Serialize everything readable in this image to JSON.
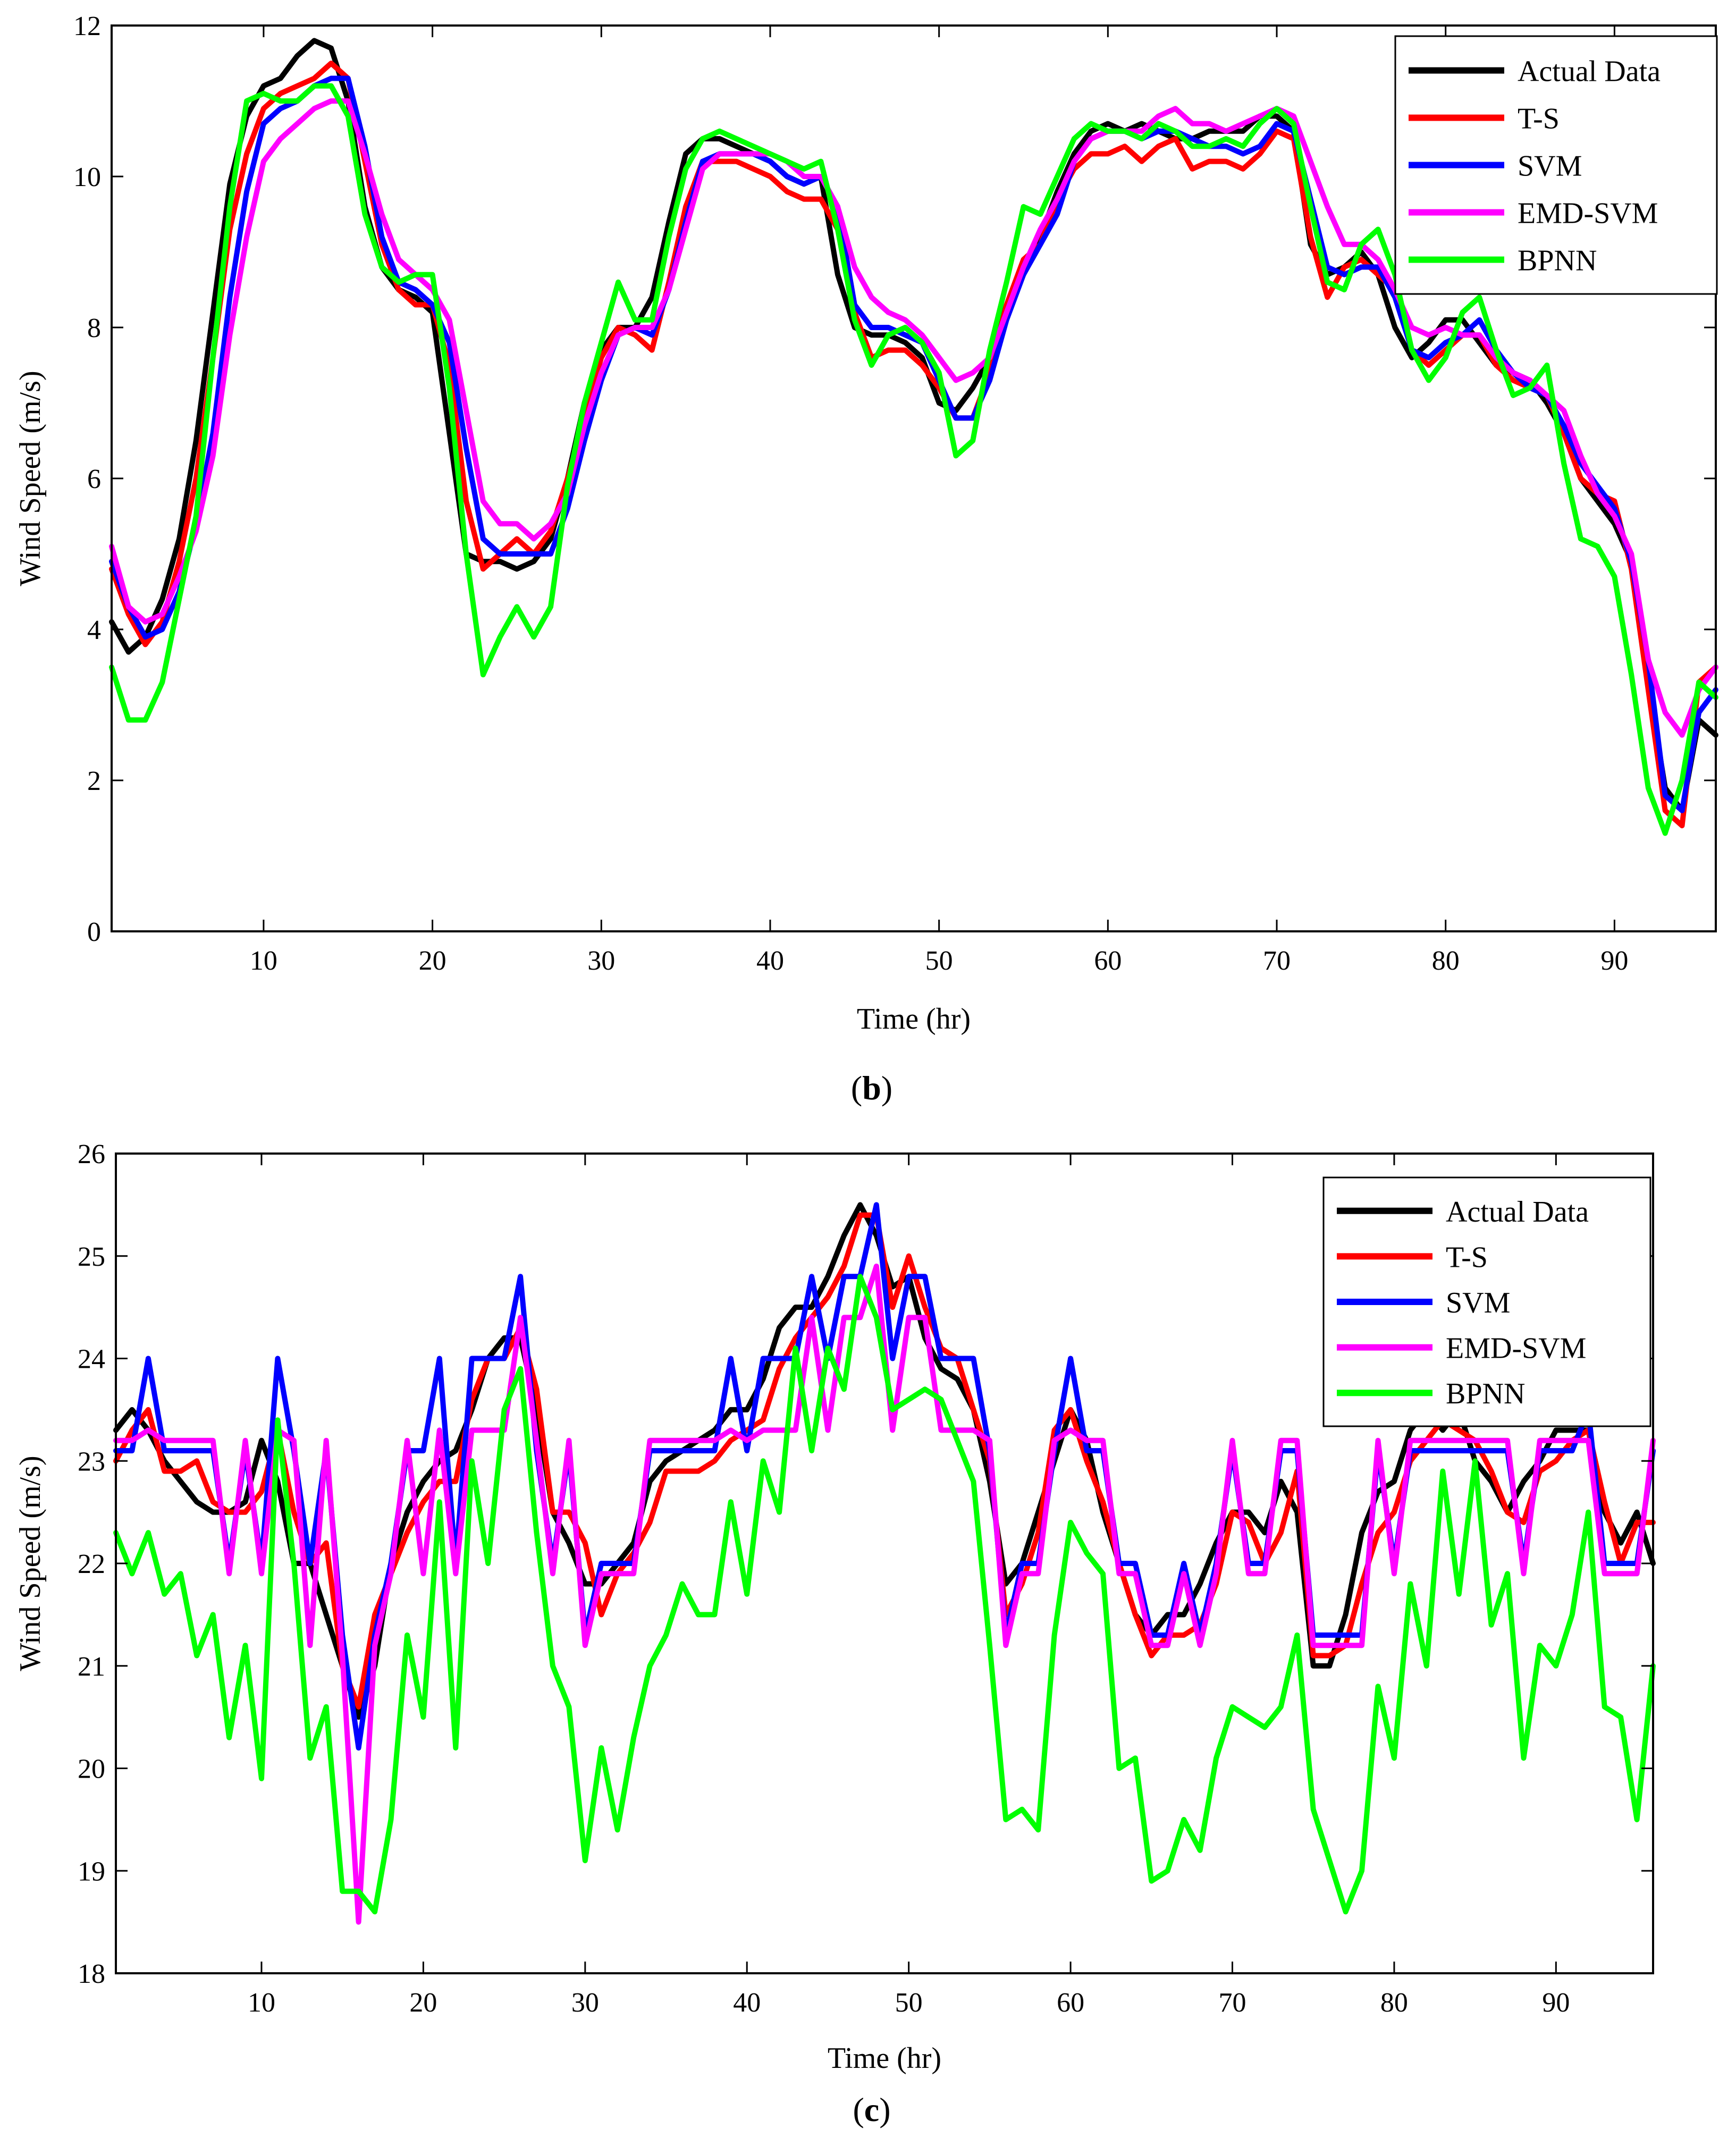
{
  "chart_data": [
    {
      "id": "b",
      "type": "line",
      "panel_label": "b",
      "title": "",
      "xlabel": "Time (hr)",
      "ylabel": "Wind Speed (m/s)",
      "xlim": [
        1,
        96
      ],
      "ylim": [
        0,
        12
      ],
      "xticks": [
        10,
        20,
        30,
        40,
        50,
        60,
        70,
        80,
        90
      ],
      "yticks": [
        0,
        2,
        4,
        6,
        8,
        10,
        12
      ],
      "grid": false,
      "legend_position": "top-right",
      "series": [
        {
          "name": "Actual Data",
          "color": "#000000",
          "values": [
            4.1,
            3.7,
            3.9,
            4.4,
            5.2,
            6.5,
            8.2,
            9.9,
            10.8,
            11.2,
            11.3,
            11.6,
            11.8,
            11.7,
            11.0,
            9.6,
            8.8,
            8.5,
            8.4,
            8.2,
            6.6,
            5.0,
            4.9,
            4.9,
            4.8,
            4.9,
            5.2,
            6.0,
            7.0,
            7.7,
            8.0,
            8.0,
            8.4,
            9.4,
            10.3,
            10.5,
            10.5,
            10.4,
            10.3,
            10.2,
            10.0,
            9.9,
            10.0,
            8.7,
            8.0,
            7.9,
            7.9,
            7.8,
            7.6,
            7.0,
            6.9,
            7.2,
            7.6,
            8.3,
            8.7,
            9.2,
            9.8,
            10.3,
            10.6,
            10.7,
            10.6,
            10.7,
            10.6,
            10.5,
            10.5,
            10.6,
            10.6,
            10.6,
            10.8,
            10.8,
            10.6,
            9.1,
            8.7,
            8.8,
            9.0,
            8.7,
            8.0,
            7.6,
            7.8,
            8.1,
            8.1,
            7.8,
            7.5,
            7.4,
            7.3,
            7.0,
            6.6,
            6.0,
            5.7,
            5.4,
            4.9,
            3.3,
            1.9,
            1.6,
            2.8,
            2.6
          ]
        },
        {
          "name": "T-S",
          "color": "#ff0000",
          "values": [
            4.8,
            4.2,
            3.8,
            4.1,
            4.9,
            6.0,
            7.6,
            9.3,
            10.3,
            10.9,
            11.1,
            11.2,
            11.3,
            11.5,
            11.3,
            10.2,
            9.1,
            8.5,
            8.3,
            8.3,
            7.5,
            5.7,
            4.8,
            5.0,
            5.2,
            5.0,
            5.3,
            6.0,
            6.8,
            7.6,
            8.0,
            7.9,
            7.7,
            8.6,
            9.6,
            10.2,
            10.2,
            10.2,
            10.1,
            10.0,
            9.8,
            9.7,
            9.7,
            9.3,
            8.2,
            7.6,
            7.7,
            7.7,
            7.5,
            7.2,
            6.8,
            6.8,
            7.4,
            8.3,
            8.9,
            9.1,
            9.7,
            10.1,
            10.3,
            10.3,
            10.4,
            10.2,
            10.4,
            10.5,
            10.1,
            10.2,
            10.2,
            10.1,
            10.3,
            10.6,
            10.5,
            9.2,
            8.4,
            8.8,
            8.9,
            8.7,
            8.5,
            7.7,
            7.5,
            7.7,
            7.9,
            7.9,
            7.5,
            7.3,
            7.2,
            7.1,
            6.6,
            6.0,
            5.8,
            5.7,
            4.8,
            3.2,
            1.6,
            1.4,
            3.3,
            3.5
          ]
        },
        {
          "name": "SVM",
          "color": "#0000ff",
          "values": [
            4.9,
            4.3,
            3.9,
            4.0,
            4.5,
            5.4,
            6.6,
            8.4,
            9.8,
            10.7,
            10.9,
            11.0,
            11.2,
            11.3,
            11.3,
            10.4,
            9.2,
            8.6,
            8.5,
            8.3,
            7.8,
            6.4,
            5.2,
            5.0,
            5.0,
            5.0,
            5.0,
            5.6,
            6.5,
            7.3,
            7.9,
            8.0,
            7.9,
            8.5,
            9.4,
            10.2,
            10.3,
            10.3,
            10.3,
            10.2,
            10.0,
            9.9,
            10.0,
            9.6,
            8.3,
            8.0,
            8.0,
            7.9,
            7.8,
            7.3,
            6.8,
            6.8,
            7.3,
            8.1,
            8.7,
            9.1,
            9.5,
            10.2,
            10.5,
            10.6,
            10.6,
            10.5,
            10.6,
            10.6,
            10.5,
            10.4,
            10.4,
            10.3,
            10.4,
            10.7,
            10.6,
            9.7,
            8.8,
            8.7,
            8.8,
            8.8,
            8.4,
            7.7,
            7.6,
            7.8,
            7.9,
            8.1,
            7.7,
            7.4,
            7.2,
            7.1,
            6.7,
            6.2,
            5.9,
            5.6,
            4.9,
            3.6,
            1.8,
            1.6,
            2.9,
            3.2
          ]
        },
        {
          "name": "EMD-SVM",
          "color": "#ff00ff",
          "values": [
            5.1,
            4.3,
            4.1,
            4.2,
            4.7,
            5.3,
            6.3,
            7.9,
            9.2,
            10.2,
            10.5,
            10.7,
            10.9,
            11.0,
            11.0,
            10.3,
            9.5,
            8.9,
            8.7,
            8.5,
            8.1,
            6.9,
            5.7,
            5.4,
            5.4,
            5.2,
            5.4,
            5.8,
            6.7,
            7.4,
            7.9,
            8.0,
            8.0,
            8.5,
            9.3,
            10.1,
            10.3,
            10.3,
            10.3,
            10.3,
            10.2,
            10.0,
            10.0,
            9.6,
            8.8,
            8.4,
            8.2,
            8.1,
            7.9,
            7.6,
            7.3,
            7.4,
            7.6,
            8.2,
            8.8,
            9.3,
            9.7,
            10.2,
            10.5,
            10.6,
            10.6,
            10.6,
            10.8,
            10.9,
            10.7,
            10.7,
            10.6,
            10.7,
            10.8,
            10.9,
            10.8,
            10.2,
            9.6,
            9.1,
            9.1,
            8.9,
            8.5,
            8.0,
            7.9,
            8.0,
            7.9,
            7.9,
            7.6,
            7.4,
            7.3,
            7.1,
            6.9,
            6.3,
            5.8,
            5.5,
            5.0,
            3.6,
            2.9,
            2.6,
            3.2,
            3.5
          ]
        },
        {
          "name": "BPNN",
          "color": "#00ff00",
          "values": [
            3.5,
            2.8,
            2.8,
            3.3,
            4.4,
            5.5,
            7.6,
            9.6,
            11.0,
            11.1,
            11.0,
            11.0,
            11.2,
            11.2,
            10.8,
            9.5,
            8.8,
            8.6,
            8.7,
            8.7,
            7.2,
            5.0,
            3.4,
            3.9,
            4.3,
            3.9,
            4.3,
            5.9,
            7.0,
            7.8,
            8.6,
            8.1,
            8.1,
            9.2,
            10.1,
            10.5,
            10.6,
            10.5,
            10.4,
            10.3,
            10.2,
            10.1,
            10.2,
            9.3,
            8.1,
            7.5,
            7.9,
            8.0,
            7.8,
            7.4,
            6.3,
            6.5,
            7.7,
            8.6,
            9.6,
            9.5,
            10.0,
            10.5,
            10.7,
            10.6,
            10.6,
            10.5,
            10.7,
            10.6,
            10.4,
            10.4,
            10.5,
            10.4,
            10.7,
            10.9,
            10.7,
            9.6,
            8.6,
            8.5,
            9.1,
            9.3,
            8.7,
            7.7,
            7.3,
            7.6,
            8.2,
            8.4,
            7.7,
            7.1,
            7.2,
            7.5,
            6.2,
            5.2,
            5.1,
            4.7,
            3.4,
            1.9,
            1.3,
            2.0,
            3.3,
            3.1
          ]
        }
      ]
    },
    {
      "id": "c",
      "type": "line",
      "panel_label": "c",
      "title": "",
      "xlabel": "Time (hr)",
      "ylabel": "Wind Speed (m/s)",
      "xlim": [
        1,
        96
      ],
      "ylim": [
        18,
        26
      ],
      "xticks": [
        10,
        20,
        30,
        40,
        50,
        60,
        70,
        80,
        90
      ],
      "yticks": [
        18,
        19,
        20,
        21,
        22,
        23,
        24,
        25,
        26
      ],
      "grid": false,
      "legend_position": "top-right",
      "series": [
        {
          "name": "Actual Data",
          "color": "#000000",
          "values": [
            23.3,
            23.5,
            23.3,
            23.0,
            22.8,
            22.6,
            22.5,
            22.5,
            22.6,
            23.2,
            22.8,
            22.0,
            22.0,
            21.5,
            21.0,
            20.5,
            21.0,
            22.0,
            22.5,
            22.8,
            23.0,
            23.1,
            23.5,
            24.0,
            24.2,
            24.2,
            23.5,
            22.5,
            22.2,
            21.8,
            21.8,
            22.0,
            22.2,
            22.8,
            23.0,
            23.1,
            23.2,
            23.3,
            23.5,
            23.5,
            23.8,
            24.3,
            24.5,
            24.5,
            24.8,
            25.2,
            25.5,
            25.2,
            24.7,
            24.8,
            24.2,
            23.9,
            23.8,
            23.5,
            22.8,
            21.8,
            22.0,
            22.5,
            23.0,
            23.5,
            23.2,
            22.5,
            22.0,
            21.5,
            21.3,
            21.5,
            21.5,
            21.8,
            22.2,
            22.5,
            22.5,
            22.3,
            22.8,
            22.5,
            21.0,
            21.0,
            21.5,
            22.3,
            22.7,
            22.8,
            23.3,
            23.5,
            23.3,
            23.5,
            23.0,
            22.8,
            22.5,
            22.8,
            23.0,
            23.3,
            23.3,
            23.3,
            22.5,
            22.2,
            22.5,
            22.0
          ]
        },
        {
          "name": "T-S",
          "color": "#ff0000",
          "values": [
            23.0,
            23.3,
            23.5,
            22.9,
            22.9,
            23.0,
            22.6,
            22.5,
            22.5,
            22.7,
            23.3,
            22.5,
            22.0,
            22.2,
            21.0,
            20.6,
            21.5,
            21.9,
            22.3,
            22.6,
            22.8,
            22.8,
            23.6,
            24.0,
            24.0,
            24.3,
            23.7,
            22.5,
            22.5,
            22.2,
            21.5,
            21.9,
            22.1,
            22.4,
            22.9,
            22.9,
            22.9,
            23.0,
            23.2,
            23.3,
            23.4,
            23.9,
            24.2,
            24.4,
            24.6,
            24.9,
            25.4,
            25.4,
            24.5,
            25.0,
            24.5,
            24.1,
            24.0,
            23.5,
            23.0,
            21.5,
            21.8,
            22.3,
            23.3,
            23.5,
            23.0,
            22.6,
            22.0,
            21.5,
            21.1,
            21.3,
            21.3,
            21.4,
            21.8,
            22.5,
            22.4,
            22.0,
            22.3,
            22.9,
            21.1,
            21.1,
            21.2,
            21.8,
            22.3,
            22.5,
            23.0,
            23.2,
            23.4,
            23.3,
            23.2,
            22.9,
            22.5,
            22.4,
            22.9,
            23.0,
            23.2,
            23.3,
            22.6,
            22.0,
            22.4,
            22.4
          ]
        },
        {
          "name": "SVM",
          "color": "#0000ff",
          "values": [
            23.1,
            23.1,
            24.0,
            23.1,
            23.1,
            23.1,
            23.1,
            22.0,
            23.1,
            22.0,
            24.0,
            23.1,
            22.0,
            23.1,
            21.3,
            20.2,
            21.3,
            22.0,
            23.1,
            23.1,
            24.0,
            22.0,
            24.0,
            24.0,
            24.0,
            24.8,
            23.1,
            22.0,
            23.1,
            21.3,
            22.0,
            22.0,
            22.0,
            23.1,
            23.1,
            23.1,
            23.1,
            23.1,
            24.0,
            23.1,
            24.0,
            24.0,
            24.0,
            24.8,
            24.0,
            24.8,
            24.8,
            25.5,
            24.0,
            24.8,
            24.8,
            24.0,
            24.0,
            24.0,
            23.1,
            21.3,
            22.0,
            22.0,
            23.1,
            24.0,
            23.1,
            23.1,
            22.0,
            22.0,
            21.3,
            21.3,
            22.0,
            21.3,
            22.0,
            23.1,
            22.0,
            22.0,
            23.1,
            23.1,
            21.3,
            21.3,
            21.3,
            21.3,
            23.1,
            22.0,
            23.1,
            23.1,
            23.1,
            23.1,
            23.1,
            23.1,
            23.1,
            22.0,
            23.1,
            23.1,
            23.1,
            23.5,
            22.0,
            22.0,
            22.0,
            23.1
          ]
        },
        {
          "name": "EMD-SVM",
          "color": "#ff00ff",
          "values": [
            23.2,
            23.2,
            23.3,
            23.2,
            23.2,
            23.2,
            23.2,
            21.9,
            23.2,
            21.9,
            23.3,
            23.2,
            21.2,
            23.2,
            21.1,
            18.5,
            21.2,
            21.9,
            23.2,
            21.9,
            23.3,
            21.9,
            23.3,
            23.3,
            23.3,
            24.4,
            23.2,
            21.9,
            23.2,
            21.2,
            21.9,
            21.9,
            21.9,
            23.2,
            23.2,
            23.2,
            23.2,
            23.2,
            23.3,
            23.2,
            23.3,
            23.3,
            23.3,
            24.4,
            23.3,
            24.4,
            24.4,
            24.9,
            23.3,
            24.4,
            24.4,
            23.3,
            23.3,
            23.3,
            23.2,
            21.2,
            21.9,
            21.9,
            23.2,
            23.3,
            23.2,
            23.2,
            21.9,
            21.9,
            21.2,
            21.2,
            21.9,
            21.2,
            21.9,
            23.2,
            21.9,
            21.9,
            23.2,
            23.2,
            21.2,
            21.2,
            21.2,
            21.2,
            23.2,
            21.9,
            23.2,
            23.2,
            23.2,
            23.2,
            23.2,
            23.2,
            23.2,
            21.9,
            23.2,
            23.2,
            23.2,
            23.2,
            21.9,
            21.9,
            21.9,
            23.2
          ]
        },
        {
          "name": "BPNN",
          "color": "#00ff00",
          "values": [
            22.3,
            21.9,
            22.3,
            21.7,
            21.9,
            21.1,
            21.5,
            20.3,
            21.2,
            19.9,
            23.4,
            22.0,
            20.1,
            20.6,
            18.8,
            18.8,
            18.6,
            19.5,
            21.3,
            20.5,
            22.6,
            20.2,
            23.0,
            22.0,
            23.5,
            23.9,
            22.3,
            21.0,
            20.6,
            19.1,
            20.2,
            19.4,
            20.3,
            21.0,
            21.3,
            21.8,
            21.5,
            21.5,
            22.6,
            21.7,
            23.0,
            22.5,
            24.1,
            23.1,
            24.1,
            23.7,
            24.8,
            24.4,
            23.5,
            23.6,
            23.7,
            23.6,
            23.2,
            22.8,
            21.2,
            19.5,
            19.6,
            19.4,
            21.3,
            22.4,
            22.1,
            21.9,
            20.0,
            20.1,
            18.9,
            19.0,
            19.5,
            19.2,
            20.1,
            20.6,
            20.5,
            20.4,
            20.6,
            21.3,
            19.6,
            19.1,
            18.6,
            19.0,
            20.8,
            20.1,
            21.8,
            21.0,
            22.9,
            21.7,
            23.0,
            21.4,
            21.9,
            20.1,
            21.2,
            21.0,
            21.5,
            22.5,
            20.6,
            20.5,
            19.5,
            21.0
          ]
        }
      ]
    }
  ]
}
